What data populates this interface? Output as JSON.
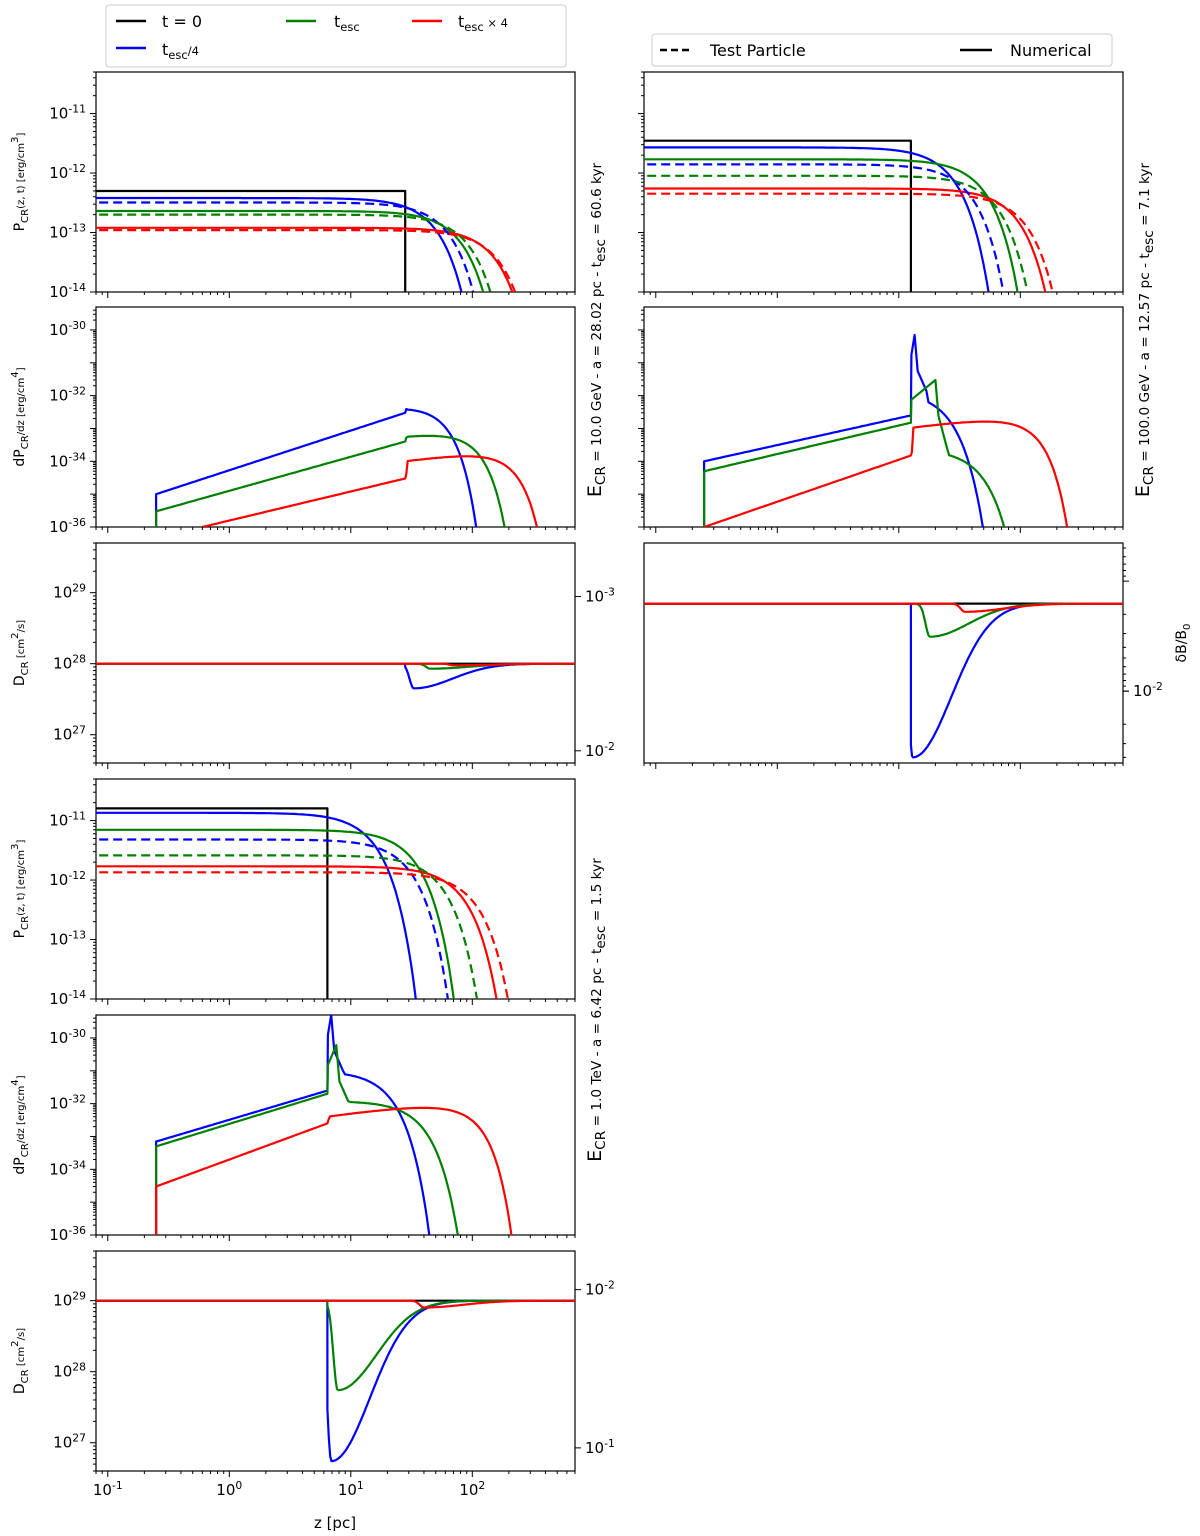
{
  "legend_time": {
    "entries": [
      {
        "label": "t = 0",
        "color": "#000000"
      },
      {
        "label": "t_esc",
        "color": "#008000"
      },
      {
        "label": "t_esc × 4",
        "color": "#ff0000"
      },
      {
        "label": "t_esc/4",
        "color": "#0000ff"
      }
    ]
  },
  "legend_style": {
    "entries": [
      {
        "label": "Test Particle",
        "style": "dashed"
      },
      {
        "label": "Numerical",
        "style": "solid"
      }
    ]
  },
  "colors": {
    "t0": "#000000",
    "quarter": "#0000ff",
    "esc": "#008000",
    "four": "#ff0000"
  },
  "row_titles": {
    "e10": "E_CR = 10.0 GeV - a = 28.02 pc - t_esc = 60.6 kyr",
    "e100": "E_CR = 100.0 GeV - a = 12.57 pc - t_esc = 7.1 kyr",
    "e1000": "E_CR = 1.0 TeV - a = 6.42 pc - t_esc = 1.5 kyr"
  },
  "axis_labels": {
    "pcr": "P_CR(z, t) [erg/cm^3]",
    "dpcr": "dP_CR/dz [erg/cm^4]",
    "dcr": "D_CR [cm^2/s]",
    "dbb": "δB/B_0",
    "z": "z [pc]"
  },
  "chart_data": [
    {
      "id": "e10_pcr",
      "type": "line",
      "xscale": "log",
      "yscale": "log",
      "xlim": [
        0.08,
        700
      ],
      "ylim": [
        1e-14,
        5e-11
      ],
      "yticks": [
        "10^-14",
        "10^-13",
        "10^-12",
        "10^-11"
      ],
      "ylabel": "P_CR(z, t) [erg/cm^3]",
      "series": [
        {
          "name": "t = 0",
          "plateau": 5e-13,
          "a": 28.02,
          "kind": "step"
        },
        {
          "name": "t_esc/4 numerical",
          "plateau": 3.8e-13,
          "a": 28.02,
          "edge": 90,
          "kind": "shoulder"
        },
        {
          "name": "t_esc/4 test particle",
          "plateau": 3.2e-13,
          "a": 28.02,
          "edge": 115,
          "kind": "shoulder",
          "dashed": true
        },
        {
          "name": "t_esc numerical",
          "plateau": 2.3e-13,
          "a": 28.02,
          "edge": 145,
          "kind": "shoulder"
        },
        {
          "name": "t_esc test particle",
          "plateau": 2e-13,
          "a": 28.02,
          "edge": 170,
          "kind": "shoulder",
          "dashed": true
        },
        {
          "name": "t_esc×4 numerical",
          "plateau": 1.2e-13,
          "a": 28.02,
          "edge": 280,
          "kind": "shoulder"
        },
        {
          "name": "t_esc×4 test particle",
          "plateau": 1.1e-13,
          "a": 28.02,
          "edge": 300,
          "kind": "shoulder",
          "dashed": true
        }
      ]
    },
    {
      "id": "e10_dpcr",
      "type": "line",
      "xscale": "log",
      "yscale": "log",
      "xlim": [
        0.08,
        700
      ],
      "ylim": [
        1e-36,
        5e-30
      ],
      "yticks": [
        "10^-36",
        "10^-34",
        "10^-32",
        "10^-30"
      ],
      "ylabel": "dP_CR/dz [erg/cm^4]",
      "series": [
        {
          "name": "t_esc/4",
          "start": 0.25,
          "ystart": 1e-35,
          "ya": 3e-33,
          "a": 28.02,
          "peak": 4.5e-33,
          "tail_peak": 4.5e-33,
          "tail_z": 32,
          "cut": 140
        },
        {
          "name": "t_esc",
          "start": 0.25,
          "ystart": 3e-36,
          "ya": 4e-34,
          "a": 28.02,
          "peak": 6e-34,
          "tail_peak": 7e-34,
          "tail_z": 65,
          "cut": 260
        },
        {
          "name": "t_esc×4",
          "start": 0.6,
          "ystart": 1e-36,
          "ya": 3e-35,
          "a": 28.02,
          "peak": 3e-35,
          "tail_peak": 1.7e-34,
          "tail_z": 140,
          "cut": 520
        }
      ]
    },
    {
      "id": "e10_dcr",
      "type": "line",
      "xscale": "log",
      "yscale": "log",
      "xlim": [
        0.08,
        700
      ],
      "ylim": [
        4e+26,
        5e+29
      ],
      "yticks": [
        "10^27",
        "10^28",
        "10^29"
      ],
      "ylabel": "D_CR [cm^2/s]",
      "right_ylim": [
        0.012,
        0.00045
      ],
      "right_yticks": [
        "10^-3",
        "10^-2"
      ],
      "series": [
        {
          "name": "t = 0",
          "base": 1e+28,
          "a": 28.02
        },
        {
          "name": "t_esc/4",
          "base": 1e+28,
          "a": 28.02,
          "min": 4.5e+27,
          "min_z": 33
        },
        {
          "name": "t_esc",
          "base": 1e+28,
          "a": 28.02,
          "min": 8.5e+27,
          "min_z": 45
        },
        {
          "name": "t_esc×4",
          "base": 1e+28,
          "a": 28.02,
          "min": 9.5e+27,
          "min_z": 70
        }
      ]
    },
    {
      "id": "e100_pcr",
      "type": "line",
      "xscale": "log",
      "yscale": "log",
      "xlim": [
        0.08,
        700
      ],
      "ylim": [
        1e-14,
        5e-11
      ],
      "series": [
        {
          "name": "t = 0",
          "plateau": 3.5e-12,
          "a": 12.57,
          "kind": "step"
        },
        {
          "name": "t_esc/4 numerical",
          "plateau": 2.7e-12,
          "a": 12.57,
          "edge": 50,
          "kind": "shoulder"
        },
        {
          "name": "t_esc/4 test particle",
          "plateau": 1.4e-12,
          "a": 12.57,
          "edge": 70,
          "kind": "shoulder",
          "dashed": true
        },
        {
          "name": "t_esc numerical",
          "plateau": 1.7e-12,
          "a": 12.57,
          "edge": 90,
          "kind": "shoulder"
        },
        {
          "name": "t_esc test particle",
          "plateau": 9e-13,
          "a": 12.57,
          "edge": 115,
          "kind": "shoulder",
          "dashed": true
        },
        {
          "name": "t_esc×4 numerical",
          "plateau": 5.5e-13,
          "a": 12.57,
          "edge": 170,
          "kind": "shoulder"
        },
        {
          "name": "t_esc×4 test particle",
          "plateau": 4.5e-13,
          "a": 12.57,
          "edge": 200,
          "kind": "shoulder",
          "dashed": true
        }
      ]
    },
    {
      "id": "e100_dpcr",
      "type": "line",
      "xscale": "log",
      "yscale": "log",
      "xlim": [
        0.08,
        700
      ],
      "ylim": [
        1e-36,
        5e-30
      ],
      "series": [
        {
          "name": "t_esc/4",
          "start": 0.25,
          "ystart": 1e-34,
          "ya": 2.5e-33,
          "a": 12.57,
          "peak": 7e-31,
          "tail_peak": 7e-31,
          "tail_z": 13.5,
          "cut": 90
        },
        {
          "name": "t_esc",
          "start": 0.25,
          "ystart": 5e-35,
          "ya": 1.5e-33,
          "a": 12.57,
          "peak": 3e-32,
          "tail_peak": 1.2e-32,
          "tail_z": 20,
          "cut": 170
        },
        {
          "name": "t_esc×4",
          "start": 0.25,
          "ystart": 1e-36,
          "ya": 1.5e-34,
          "a": 12.57,
          "peak": 1.5e-34,
          "tail_peak": 1.8e-33,
          "tail_z": 65,
          "cut": 330
        }
      ]
    },
    {
      "id": "e100_dcr",
      "type": "line",
      "xscale": "log",
      "yscale": "log",
      "xlim": [
        0.08,
        700
      ],
      "ylim": [
        0.045,
        0.00045
      ],
      "right_ylabel": "δB/B_0",
      "right_yticks": [
        "10^-2"
      ],
      "series": [
        {
          "name": "t = 0",
          "base": 0.0016,
          "a": 12.57
        },
        {
          "name": "t_esc/4",
          "base": 0.0016,
          "a": 12.57,
          "min": 0.04,
          "min_z": 13
        },
        {
          "name": "t_esc",
          "base": 0.0016,
          "a": 12.57,
          "min": 0.0032,
          "min_z": 18
        },
        {
          "name": "t_esc×4",
          "base": 0.0016,
          "a": 12.57,
          "min": 0.0019,
          "min_z": 35
        }
      ]
    },
    {
      "id": "e1000_pcr",
      "type": "line",
      "xscale": "log",
      "yscale": "log",
      "xlim": [
        0.08,
        700
      ],
      "ylim": [
        1e-14,
        5e-11
      ],
      "yticks": [
        "10^-14",
        "10^-13",
        "10^-12",
        "10^-11"
      ],
      "ylabel": "P_CR(z, t) [erg/cm^3]",
      "series": [
        {
          "name": "t = 0",
          "plateau": 1.6e-11,
          "a": 6.42,
          "kind": "step"
        },
        {
          "name": "t_esc/4 numerical",
          "plateau": 1.35e-11,
          "a": 6.42,
          "edge": 28,
          "kind": "shoulder"
        },
        {
          "name": "t_esc/4 test particle",
          "plateau": 4.8e-12,
          "a": 6.42,
          "edge": 55,
          "kind": "shoulder",
          "dashed": true
        },
        {
          "name": "t_esc numerical",
          "plateau": 7e-12,
          "a": 6.42,
          "edge": 60,
          "kind": "shoulder"
        },
        {
          "name": "t_esc test particle",
          "plateau": 2.6e-12,
          "a": 6.42,
          "edge": 100,
          "kind": "shoulder",
          "dashed": true
        },
        {
          "name": "t_esc×4 numerical",
          "plateau": 1.7e-12,
          "a": 6.42,
          "edge": 150,
          "kind": "shoulder"
        },
        {
          "name": "t_esc×4 test particle",
          "plateau": 1.35e-12,
          "a": 6.42,
          "edge": 190,
          "kind": "shoulder",
          "dashed": true
        }
      ]
    },
    {
      "id": "e1000_dpcr",
      "type": "line",
      "xscale": "log",
      "yscale": "log",
      "xlim": [
        0.08,
        700
      ],
      "ylim": [
        1e-36,
        5e-30
      ],
      "yticks": [
        "10^-36",
        "10^-34",
        "10^-32",
        "10^-30"
      ],
      "ylabel": "dP_CR/dz [erg/cm^4]",
      "series": [
        {
          "name": "t_esc/4",
          "start": 0.25,
          "ystart": 7e-34,
          "ya": 2.5e-32,
          "a": 6.42,
          "peak": 5e-30,
          "tail_peak": 5e-30,
          "tail_z": 6.9,
          "cut": 75
        },
        {
          "name": "t_esc",
          "start": 0.25,
          "ystart": 5e-34,
          "ya": 2e-32,
          "a": 6.42,
          "peak": 6e-31,
          "tail_peak": 6e-31,
          "tail_z": 7.6,
          "cut": 140
        },
        {
          "name": "t_esc×4",
          "start": 0.25,
          "ystart": 3e-35,
          "ya": 2.5e-33,
          "a": 6.42,
          "peak": 2.5e-33,
          "tail_peak": 8e-33,
          "tail_z": 45,
          "cut": 270
        }
      ]
    },
    {
      "id": "e1000_dcr",
      "type": "line",
      "xscale": "log",
      "yscale": "log",
      "xlim": [
        0.08,
        700
      ],
      "ylim": [
        4e+26,
        5e+29
      ],
      "yticks": [
        "10^27",
        "10^28",
        "10^29"
      ],
      "ylabel": "D_CR [cm^2/s]",
      "xticks": [
        "10^-1",
        "10^0",
        "10^1",
        "10^2"
      ],
      "xlabel": "z [pc]",
      "right_ylim": [
        0.14,
        0.0057
      ],
      "right_yticks": [
        "10^-2",
        "10^-1"
      ],
      "series": [
        {
          "name": "t = 0",
          "base": 1e+29,
          "a": 6.42
        },
        {
          "name": "t_esc/4",
          "base": 1e+29,
          "a": 6.42,
          "min": 5.5e+26,
          "min_z": 6.9
        },
        {
          "name": "t_esc",
          "base": 1e+29,
          "a": 6.42,
          "min": 5.5e+27,
          "min_z": 7.8
        },
        {
          "name": "t_esc×4",
          "base": 1e+29,
          "a": 6.42,
          "min": 8e+28,
          "min_z": 40
        }
      ]
    }
  ]
}
